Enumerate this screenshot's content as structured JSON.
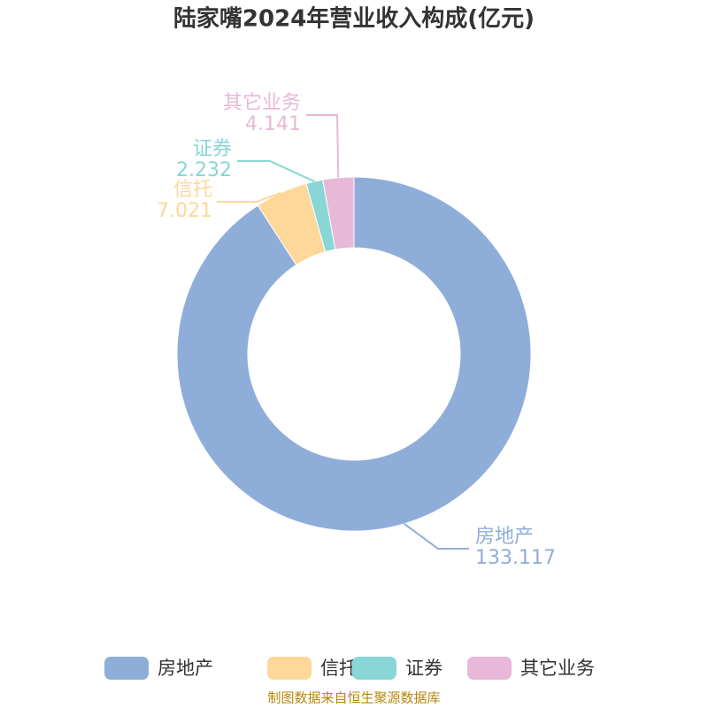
{
  "chart_data": {
    "type": "donut",
    "title": "陆家嘴2024年营业收入构成(亿元)",
    "categories": [
      "房地产",
      "信托",
      "证券",
      "其它业务"
    ],
    "values": [
      133.117,
      7.021,
      2.232,
      4.141
    ],
    "colors": [
      "#8fadd9",
      "#fdd89a",
      "#88d6d6",
      "#e8b8d8"
    ],
    "source": "制图数据来自恒生聚源数据库"
  }
}
